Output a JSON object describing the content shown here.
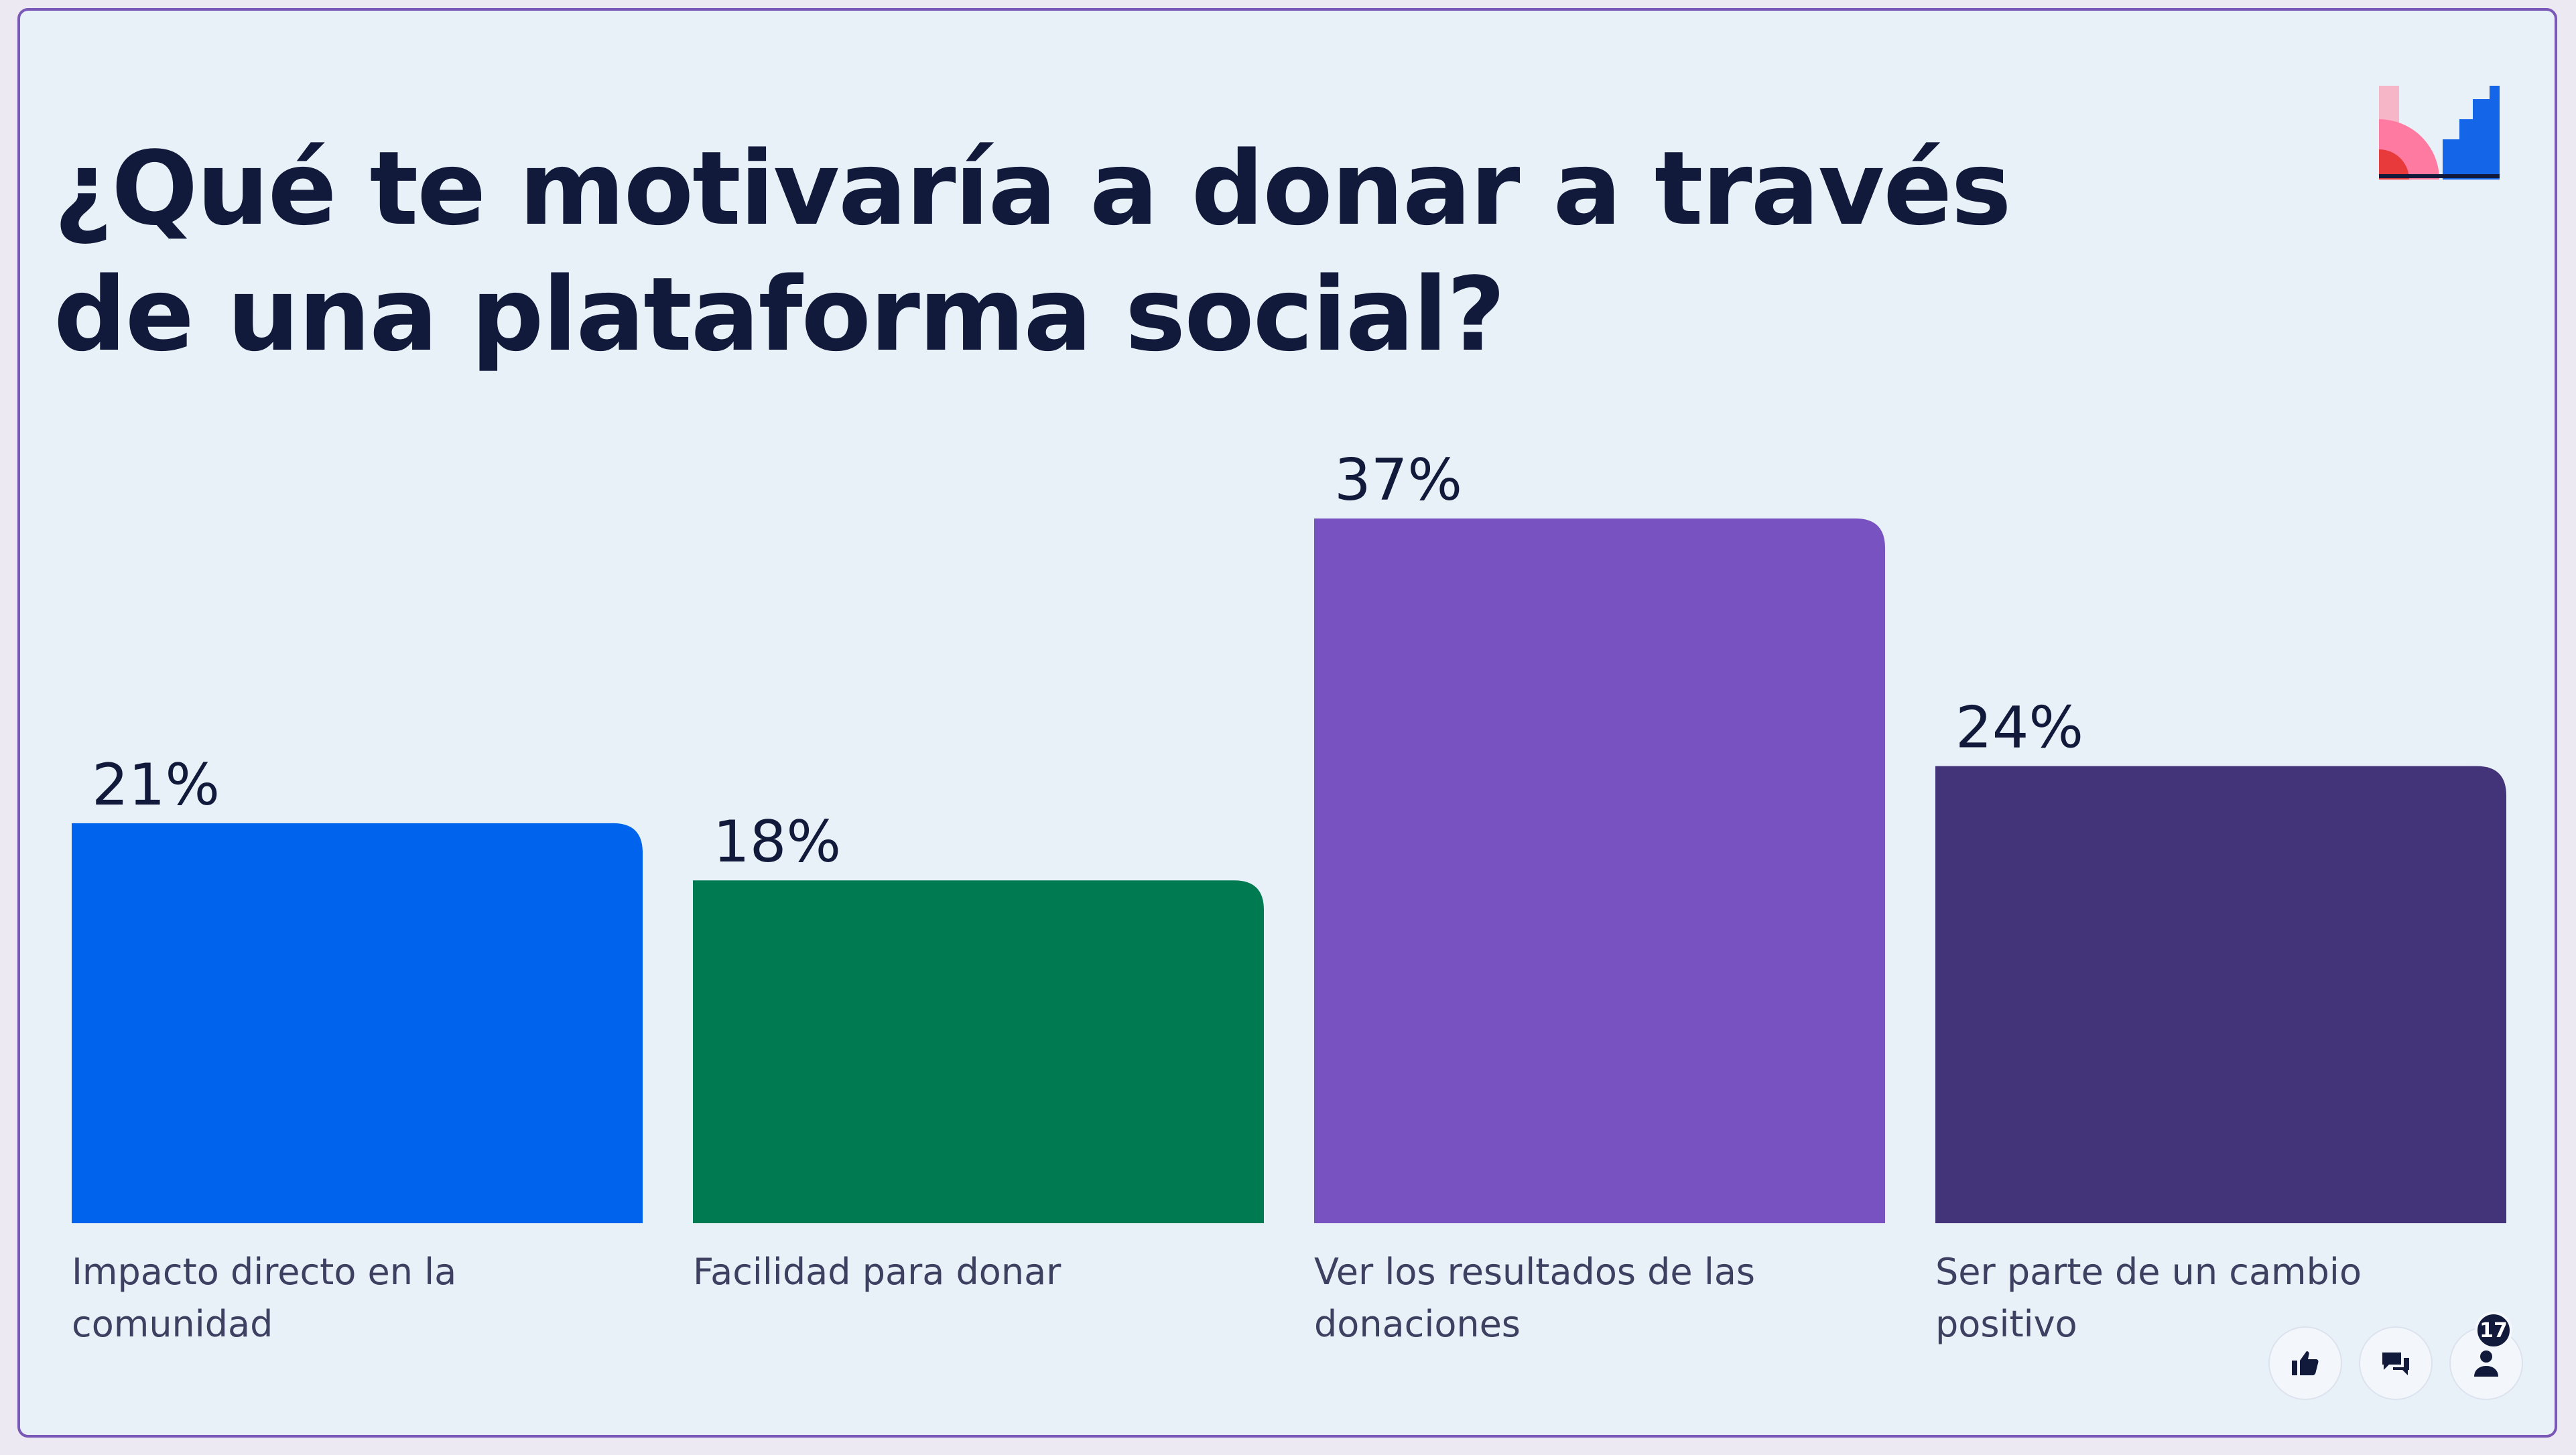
{
  "question": "¿Qué te motivaría a donar a través de una plataforma social?",
  "participants": "17",
  "icons": [
    "brand-logo-icon",
    "thumbs-up-icon",
    "chat-icon",
    "person-icon"
  ],
  "colors": {
    "background": "#e9f1f8",
    "title": "#111a3a",
    "frame": "#7a58b8"
  },
  "chart_data": {
    "type": "bar",
    "categories": [
      "Impacto directo en la comunidad",
      "Facilidad para donar",
      "Ver los resultados de las donaciones",
      "Ser parte de un cambio positivo"
    ],
    "values": [
      21,
      18,
      37,
      24
    ],
    "value_labels": [
      "21%",
      "18%",
      "37%",
      "24%"
    ],
    "colors": [
      "#0063ed",
      "#007a51",
      "#7852c0",
      "#433479"
    ],
    "ylim": [
      0,
      37
    ],
    "grid": false,
    "legend": "none"
  }
}
